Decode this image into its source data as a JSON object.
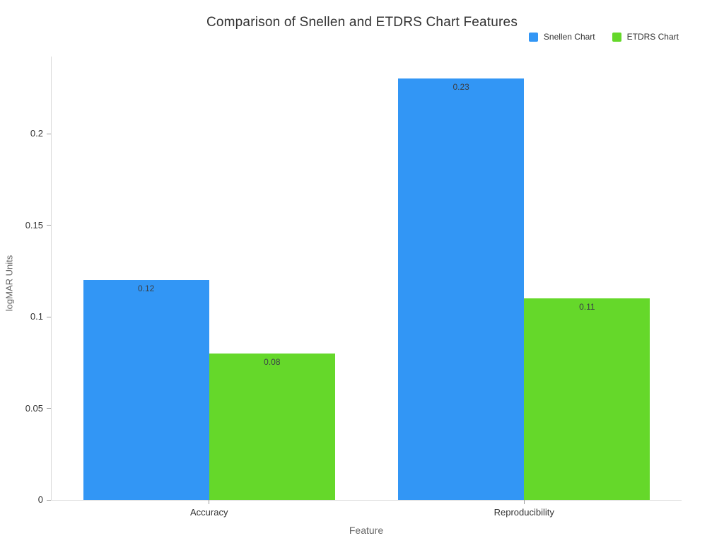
{
  "chart_data": {
    "type": "bar",
    "title": "Comparison of Snellen and ETDRS Chart Features",
    "xlabel": "Feature",
    "ylabel": "logMAR Units",
    "categories": [
      "Accuracy",
      "Reproducibility"
    ],
    "series": [
      {
        "name": "Snellen Chart",
        "color": "#3296f5",
        "values": [
          0.12,
          0.23
        ],
        "labels": [
          "0.12",
          "0.23"
        ]
      },
      {
        "name": "ETDRS Chart",
        "color": "#65d82a",
        "values": [
          0.08,
          0.11
        ],
        "labels": [
          "0.08",
          "0.11"
        ]
      }
    ],
    "yticks": [
      {
        "value": 0,
        "label": "0"
      },
      {
        "value": 0.05,
        "label": "0.05"
      },
      {
        "value": 0.1,
        "label": "0.1"
      },
      {
        "value": 0.15,
        "label": "0.15"
      },
      {
        "value": 0.2,
        "label": "0.2"
      }
    ],
    "ylim": [
      0,
      0.2421
    ],
    "grid": false,
    "legend_position": "top-right",
    "bar_label_position": "inside-top",
    "style": {
      "background": "#ffffff",
      "axis_line_color": "#d9d9d9",
      "tick_mark_color": "#9a9a9a",
      "title_color": "#333333",
      "tick_text_color": "#333333",
      "axis_title_color": "#666666",
      "bar_label_color": "#3a3f47"
    }
  }
}
